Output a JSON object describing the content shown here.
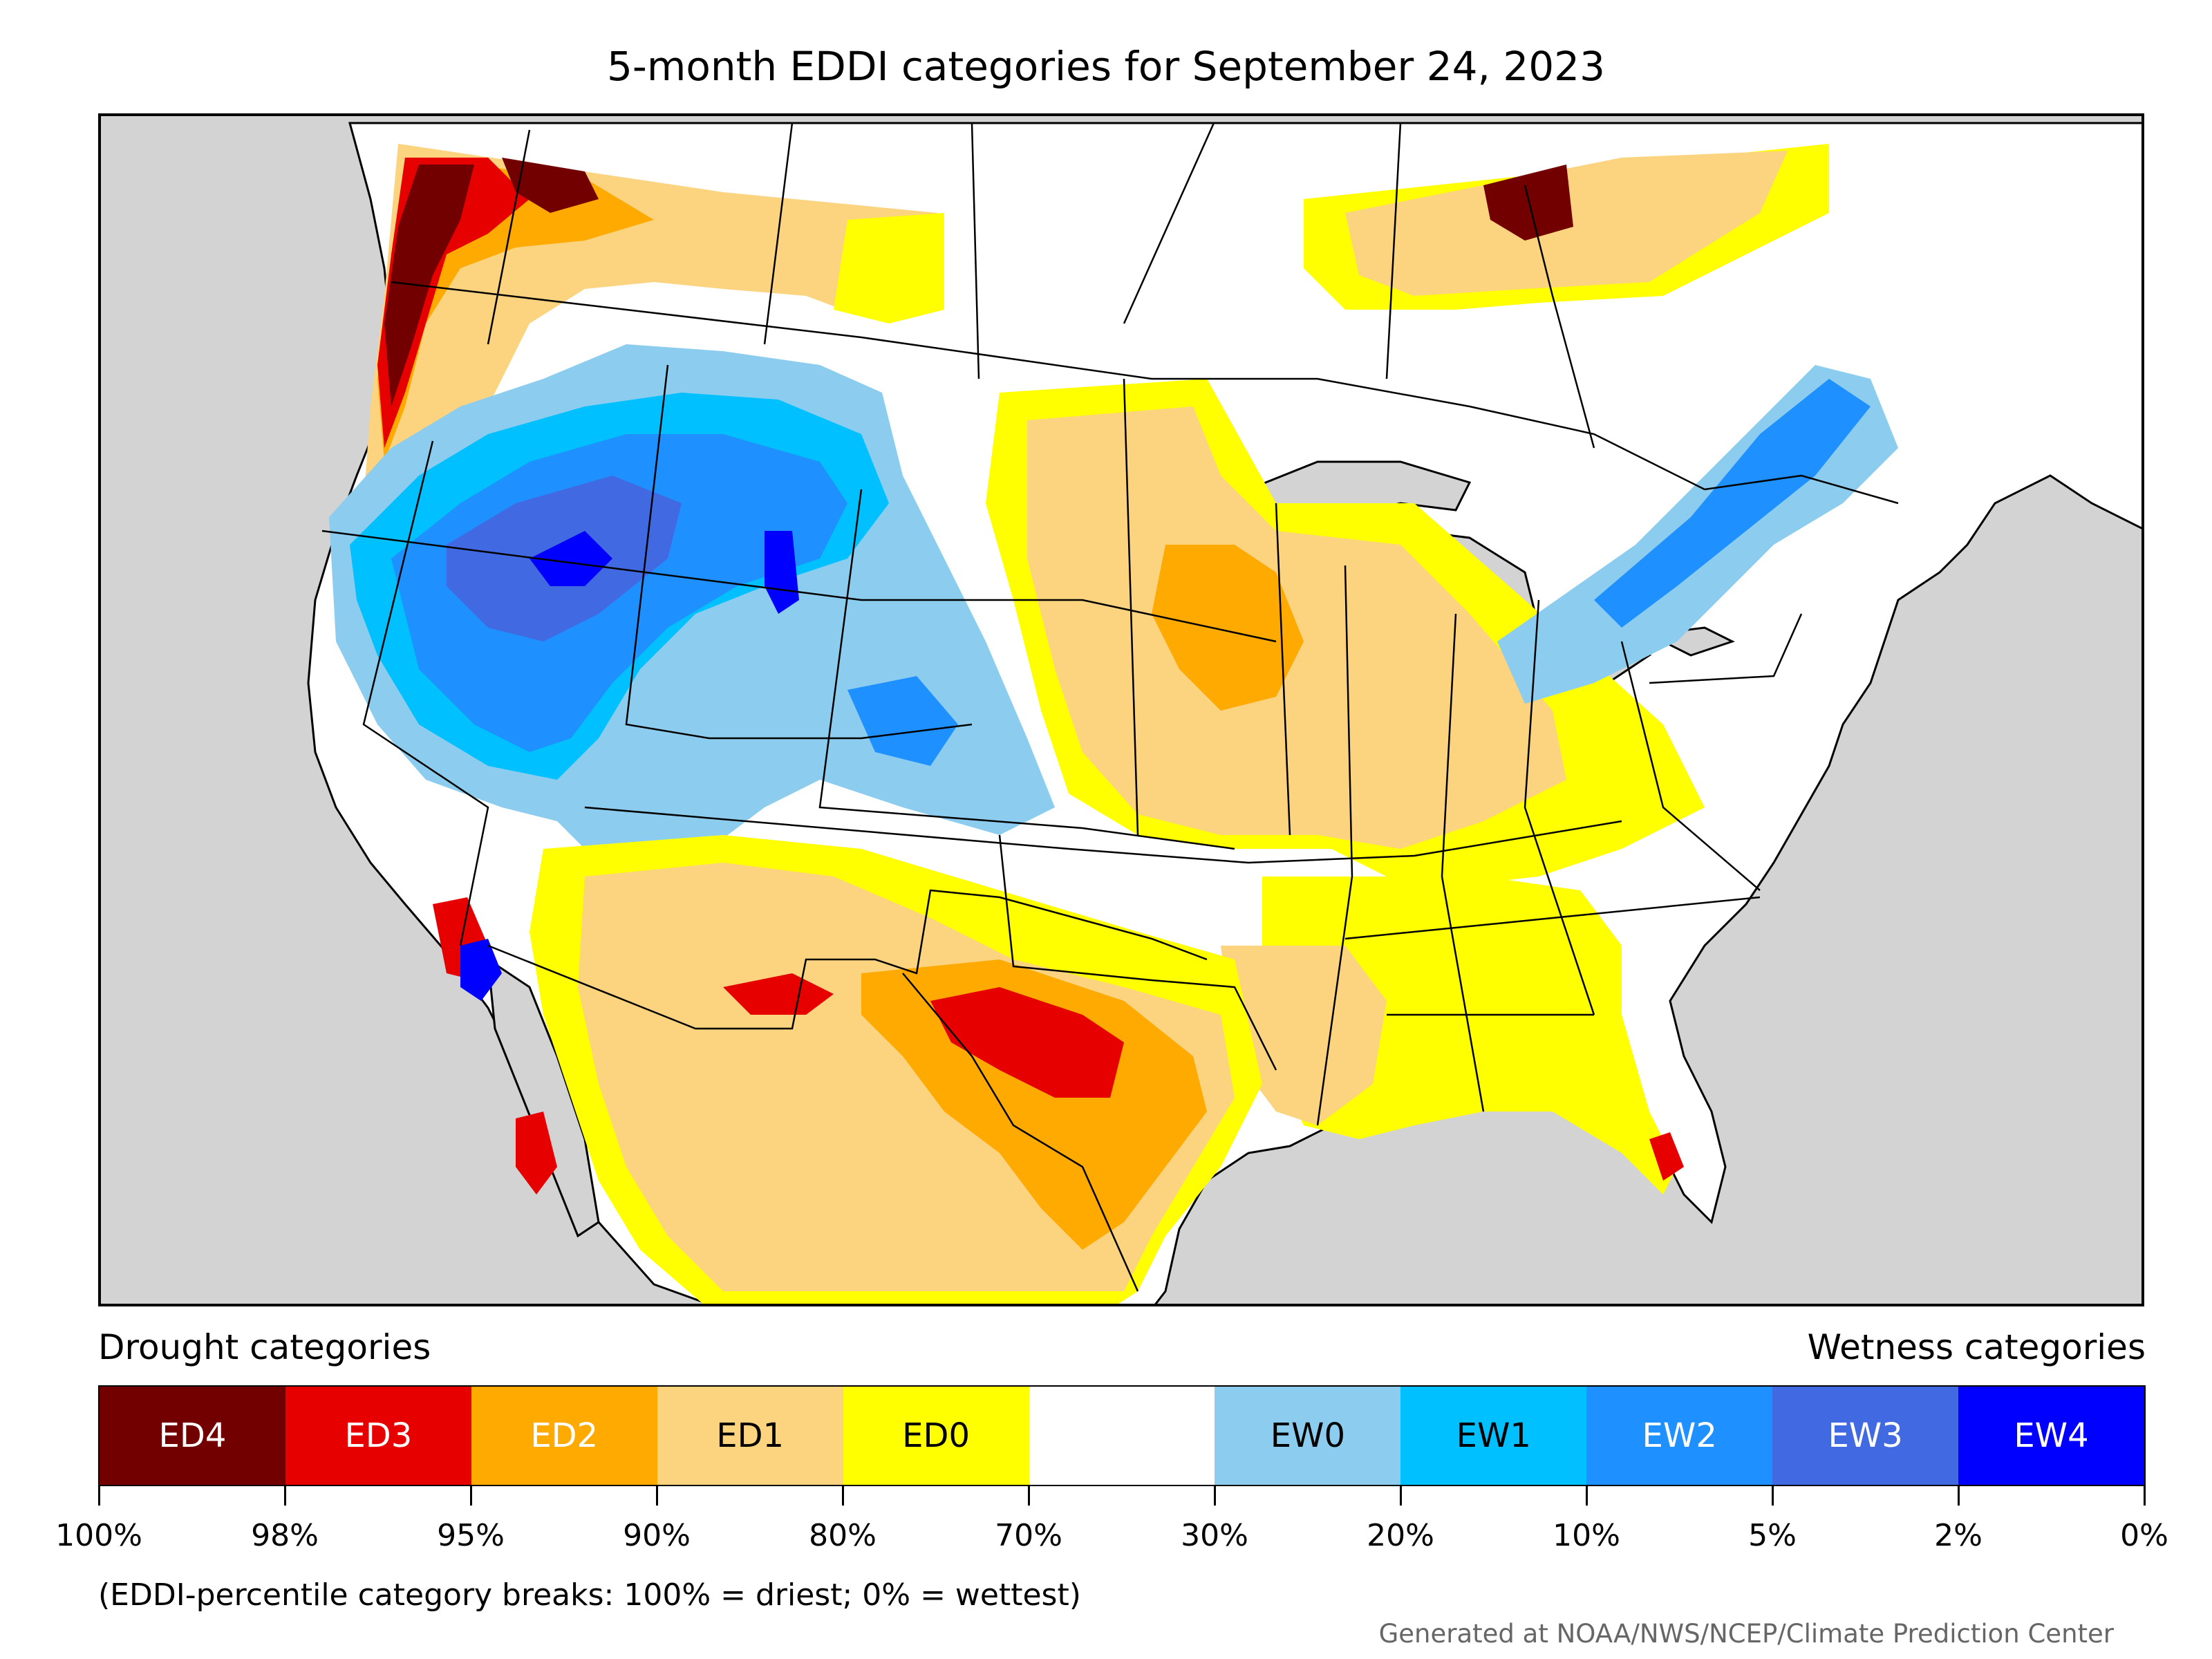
{
  "title": "5-month EDDI categories for September 24, 2023",
  "legend": {
    "drought_heading": "Drought categories",
    "wetness_heading": "Wetness categories",
    "categories": [
      {
        "label": "ED4",
        "color": "#730000",
        "text_color": "#ffffff"
      },
      {
        "label": "ED3",
        "color": "#e60000",
        "text_color": "#ffffff"
      },
      {
        "label": "ED2",
        "color": "#ffaa00",
        "text_color": "#ffffff"
      },
      {
        "label": "ED1",
        "color": "#fcd37f",
        "text_color": "#000000"
      },
      {
        "label": "ED0",
        "color": "#ffff00",
        "text_color": "#000000"
      },
      {
        "label": "",
        "color": "#ffffff",
        "text_color": "#000000"
      },
      {
        "label": "EW0",
        "color": "#8ccdef",
        "text_color": "#000000"
      },
      {
        "label": "EW1",
        "color": "#00c0ff",
        "text_color": "#000000"
      },
      {
        "label": "EW2",
        "color": "#1e90ff",
        "text_color": "#ffffff"
      },
      {
        "label": "EW3",
        "color": "#4169e1",
        "text_color": "#ffffff"
      },
      {
        "label": "EW4",
        "color": "#0000ff",
        "text_color": "#ffffff"
      }
    ],
    "breaks": [
      "100%",
      "98%",
      "95%",
      "90%",
      "80%",
      "70%",
      "30%",
      "20%",
      "10%",
      "5%",
      "2%",
      "0%"
    ]
  },
  "note": "(EDDI-percentile category breaks: 100% = driest; 0% = wettest)",
  "credit": "Generated at NOAA/NWS/NCEP/Climate Prediction Center",
  "map": {
    "water_color": "#d3d3d3",
    "land_color": "#ffffff"
  }
}
